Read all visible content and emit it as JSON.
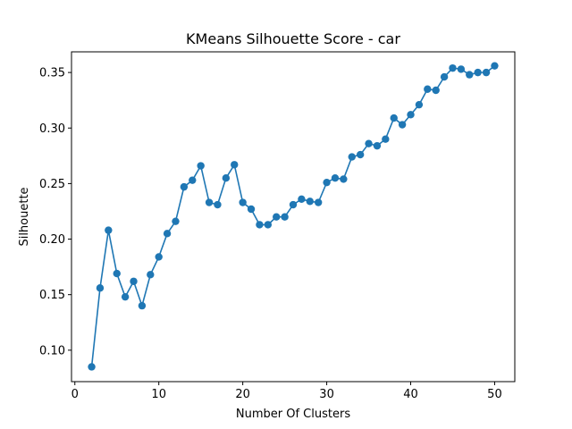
{
  "chart_data": {
    "type": "line",
    "title": "KMeans Silhouette Score - car",
    "xlabel": "Number Of Clusters",
    "ylabel": "Silhouette",
    "xlim": [
      -0.4,
      52.4
    ],
    "ylim": [
      0.0717,
      0.3686
    ],
    "xticks": [
      0,
      10,
      20,
      30,
      40,
      50
    ],
    "yticks": [
      0.1,
      0.15,
      0.2,
      0.25,
      0.3,
      0.35
    ],
    "ytick_labels": [
      "0.10",
      "0.15",
      "0.20",
      "0.25",
      "0.30",
      "0.35"
    ],
    "grid": false,
    "line_color": "#1f77b4",
    "marker": "circle",
    "series": [
      {
        "x": [
          2,
          3,
          4,
          5,
          6,
          7,
          8,
          9,
          10,
          11,
          12,
          13,
          14,
          15,
          16,
          17,
          18,
          19,
          20,
          21,
          22,
          23,
          24,
          25,
          26,
          27,
          28,
          29,
          30,
          31,
          32,
          33,
          34,
          35,
          36,
          37,
          38,
          39,
          40,
          41,
          42,
          43,
          44,
          45,
          46,
          47,
          48,
          49,
          50
        ],
        "values": [
          0.085,
          0.156,
          0.208,
          0.169,
          0.148,
          0.162,
          0.14,
          0.168,
          0.184,
          0.205,
          0.216,
          0.247,
          0.253,
          0.266,
          0.233,
          0.231,
          0.255,
          0.267,
          0.233,
          0.227,
          0.213,
          0.213,
          0.22,
          0.22,
          0.231,
          0.236,
          0.234,
          0.233,
          0.251,
          0.255,
          0.254,
          0.274,
          0.276,
          0.286,
          0.284,
          0.29,
          0.309,
          0.303,
          0.312,
          0.321,
          0.335,
          0.334,
          0.346,
          0.354,
          0.353,
          0.348,
          0.35,
          0.35,
          0.356
        ]
      }
    ]
  }
}
